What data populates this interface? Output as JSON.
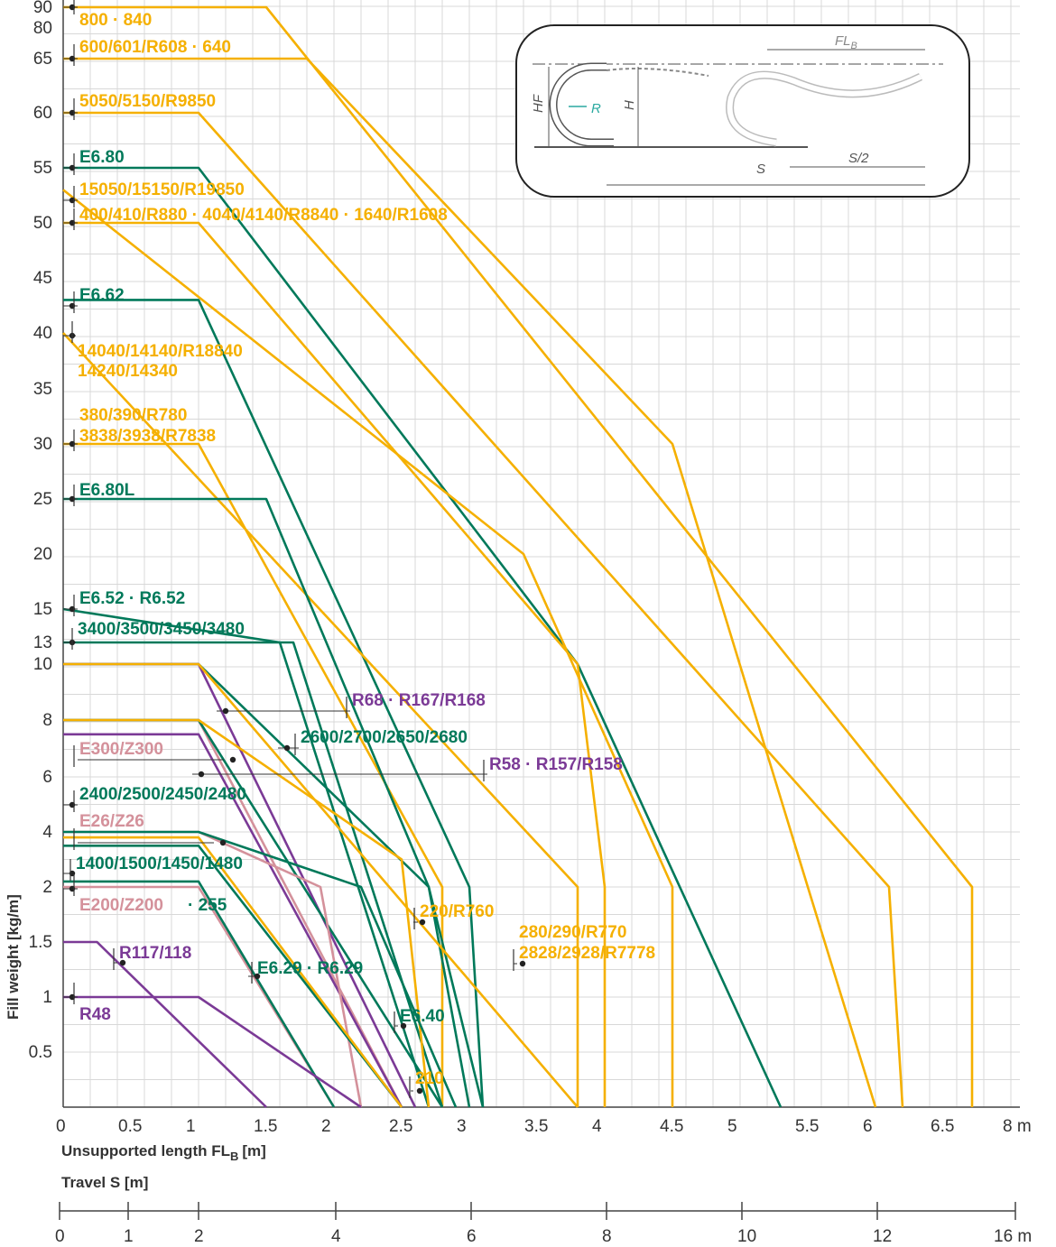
{
  "chart_data": {
    "type": "line",
    "title": "",
    "xlabel": "Unsupported length FL",
    "xlabel_sub": "B",
    "xlabel_unit": "[m]",
    "ylabel": "Fill weight [kg/m]",
    "travel_label": "Travel S [m]",
    "x_ticks": [
      "0",
      "0.5",
      "1",
      "1.5",
      "2",
      "2.5",
      "3",
      "3.5",
      "4",
      "4.5",
      "5",
      "5.5",
      "6",
      "6.5",
      "8 m"
    ],
    "y_ticks": [
      "0.5",
      "1",
      "1.5",
      "2",
      "4",
      "6",
      "8",
      "10",
      "13",
      "15",
      "20",
      "25",
      "30",
      "35",
      "40",
      "45",
      "50",
      "55",
      "60",
      "65",
      "80",
      "90"
    ],
    "travel_ticks": [
      "0",
      "1",
      "2",
      "4",
      "6",
      "8",
      "10",
      "12",
      "16 m"
    ],
    "colors": {
      "yellow": "#f5b000",
      "green": "#00795a",
      "purple": "#7b3a96",
      "pink": "#d4919b",
      "grid": "#d8d8d8",
      "text": "#333333"
    },
    "series": [
      {
        "name": "800 · 840",
        "color": "yellow",
        "points": [
          [
            0,
            90
          ],
          [
            1.5,
            90
          ],
          [
            6.7,
            2
          ],
          [
            6.7,
            0
          ]
        ]
      },
      {
        "name": "600/601/R608 · 640",
        "color": "yellow",
        "points": [
          [
            0,
            65
          ],
          [
            1.8,
            65
          ],
          [
            4.5,
            30
          ],
          [
            5.5,
            2
          ],
          [
            6.0,
            0
          ]
        ]
      },
      {
        "name": "5050/5150/R9850",
        "color": "yellow",
        "points": [
          [
            0,
            60
          ],
          [
            1.0,
            60
          ],
          [
            6.1,
            2
          ],
          [
            6.2,
            0
          ]
        ]
      },
      {
        "name": "E6.80",
        "color": "green",
        "points": [
          [
            0,
            55
          ],
          [
            1.0,
            55
          ],
          [
            3.8,
            10
          ],
          [
            5.3,
            0
          ]
        ]
      },
      {
        "name": "15050/15150/R19850",
        "color": "yellow",
        "points": [
          [
            0,
            53
          ],
          [
            3.4,
            20
          ],
          [
            4.5,
            2
          ],
          [
            4.5,
            0
          ]
        ]
      },
      {
        "name": "400/410/R880 · 4040/4140/R8840 · 1640/R1608",
        "color": "yellow",
        "points": [
          [
            0,
            50
          ],
          [
            1.0,
            50
          ],
          [
            3.8,
            10
          ],
          [
            4.0,
            2
          ],
          [
            4.0,
            0
          ]
        ]
      },
      {
        "name": "E6.62",
        "color": "green",
        "points": [
          [
            0,
            43
          ],
          [
            1.0,
            43
          ],
          [
            3.0,
            2
          ],
          [
            3.1,
            0
          ]
        ]
      },
      {
        "name": "14040/14140/R18840 14240/14340",
        "color": "yellow",
        "points": [
          [
            0,
            40
          ],
          [
            3.8,
            2
          ],
          [
            3.8,
            0
          ]
        ]
      },
      {
        "name": "380/390/R780 3838/3938/R7838",
        "color": "yellow",
        "points": [
          [
            0,
            30
          ],
          [
            1.0,
            30
          ],
          [
            2.8,
            2
          ],
          [
            2.8,
            0
          ]
        ]
      },
      {
        "name": "E6.80L",
        "color": "green",
        "points": [
          [
            0,
            25
          ],
          [
            1.5,
            25
          ],
          [
            2.7,
            2
          ],
          [
            3.0,
            0
          ]
        ]
      },
      {
        "name": "E6.52 · R6.52",
        "color": "green",
        "points": [
          [
            0,
            15
          ],
          [
            1.6,
            13
          ],
          [
            2.7,
            0
          ]
        ]
      },
      {
        "name": "3400/3500/3450/3480",
        "color": "green",
        "points": [
          [
            0,
            13
          ],
          [
            1.7,
            13
          ],
          [
            2.8,
            0
          ]
        ]
      },
      {
        "name": "2600/2700/2650/2680",
        "color": "green",
        "points": [
          [
            0,
            10
          ],
          [
            1.0,
            10
          ],
          [
            2.7,
            2
          ],
          [
            3.1,
            0
          ]
        ]
      },
      {
        "name": "R68 · R167/R168",
        "color": "purple",
        "points": [
          [
            0,
            10
          ],
          [
            1.0,
            10
          ],
          [
            2.6,
            0
          ]
        ]
      },
      {
        "name": "280/290/R770 2828/2928/R7778",
        "color": "yellow",
        "points": [
          [
            0,
            10
          ],
          [
            1.0,
            10
          ],
          [
            3.8,
            0
          ]
        ]
      },
      {
        "name": "E300/Z300",
        "color": "pink",
        "points": [
          [
            0,
            8
          ],
          [
            1.0,
            8
          ],
          [
            2.5,
            0
          ]
        ]
      },
      {
        "name": "R58 · R157/R158",
        "color": "purple",
        "points": [
          [
            0,
            7.5
          ],
          [
            1.0,
            7.5
          ],
          [
            2.5,
            0
          ]
        ]
      },
      {
        "name": "2400/2500/2450/2480",
        "color": "green",
        "points": [
          [
            0,
            8
          ],
          [
            1.0,
            8
          ],
          [
            2.8,
            0
          ]
        ]
      },
      {
        "name": "220/R760",
        "color": "yellow",
        "points": [
          [
            0,
            8
          ],
          [
            1.0,
            8
          ],
          [
            2.5,
            3
          ],
          [
            2.7,
            0
          ]
        ]
      },
      {
        "name": "E26/Z26",
        "color": "pink",
        "points": [
          [
            0,
            4
          ],
          [
            1.0,
            4
          ],
          [
            1.9,
            2
          ],
          [
            2.2,
            0
          ]
        ]
      },
      {
        "name": "1400/1500/1450/1480",
        "color": "green",
        "points": [
          [
            0,
            3.5
          ],
          [
            1.0,
            3.5
          ],
          [
            2.5,
            0
          ]
        ]
      },
      {
        "name": "E200/Z200 · 255",
        "color": "pink",
        "points": [
          [
            0,
            2
          ],
          [
            1.0,
            2
          ],
          [
            2.0,
            0
          ]
        ]
      },
      {
        "name": "E6.29 · R6.29",
        "color": "green",
        "points": [
          [
            0,
            2.2
          ],
          [
            1.0,
            2.2
          ],
          [
            2.0,
            0
          ]
        ]
      },
      {
        "name": "E6.40",
        "color": "green",
        "points": [
          [
            0,
            4
          ],
          [
            1.0,
            4
          ],
          [
            2.2,
            2
          ],
          [
            2.9,
            0
          ]
        ]
      },
      {
        "name": "210",
        "color": "yellow",
        "points": [
          [
            0,
            3.8
          ],
          [
            1.0,
            3.8
          ],
          [
            2.5,
            0
          ]
        ]
      },
      {
        "name": "R117/118",
        "color": "purple",
        "points": [
          [
            0,
            1.5
          ],
          [
            0.25,
            1.5
          ],
          [
            1.5,
            0
          ]
        ]
      },
      {
        "name": "R48",
        "color": "purple",
        "points": [
          [
            0,
            1
          ],
          [
            1.0,
            1
          ],
          [
            2.2,
            0
          ]
        ]
      }
    ],
    "labels": [
      {
        "text": "800 · 840",
        "color": "yellow"
      },
      {
        "text": "600/601/R608 · 640",
        "color": "yellow"
      },
      {
        "text": "5050/5150/R9850",
        "color": "yellow"
      },
      {
        "text": "E6.80",
        "color": "green"
      },
      {
        "text": "15050/15150/R19850",
        "color": "yellow"
      },
      {
        "text": "400/410/R880 · 4040/4140/R8840 · 1640/R1608",
        "color": "yellow"
      },
      {
        "text": "E6.62",
        "color": "green"
      },
      {
        "text": "14040/14140/R18840",
        "color": "yellow"
      },
      {
        "text": "14240/14340",
        "color": "yellow"
      },
      {
        "text": "380/390/R780",
        "color": "yellow"
      },
      {
        "text": "3838/3938/R7838",
        "color": "yellow"
      },
      {
        "text": "E6.80L",
        "color": "green"
      },
      {
        "text": "E6.52 · R6.52",
        "color": "green"
      },
      {
        "text": "3400/3500/3450/3480",
        "color": "green"
      },
      {
        "text": "R68 · R167/R168",
        "color": "purple"
      },
      {
        "text": "2600/2700/2650/2680",
        "color": "green"
      },
      {
        "text": "E300/Z300",
        "color": "pink"
      },
      {
        "text": "R58 · R157/R158",
        "color": "purple"
      },
      {
        "text": "2400/2500/2450/2480",
        "color": "green"
      },
      {
        "text": "E26/Z26",
        "color": "pink"
      },
      {
        "text": "1400/1500/1450/1480",
        "color": "green"
      },
      {
        "text": "E200/Z200",
        "color": "pink"
      },
      {
        "text": "· 255",
        "color": "green"
      },
      {
        "text": "220/R760",
        "color": "yellow"
      },
      {
        "text": "280/290/R770",
        "color": "yellow"
      },
      {
        "text": "2828/2928/R7778",
        "color": "yellow"
      },
      {
        "text": "R117/118",
        "color": "purple"
      },
      {
        "text": "E6.29 · R6.29",
        "color": "green"
      },
      {
        "text": "R48",
        "color": "purple"
      },
      {
        "text": "E6.40",
        "color": "green"
      },
      {
        "text": "210",
        "color": "yellow"
      }
    ],
    "inset": {
      "fl": "FL",
      "fl_sub": "B",
      "hf": "HF",
      "h": "H",
      "r": "R",
      "s": "S",
      "s2": "S/2"
    }
  }
}
